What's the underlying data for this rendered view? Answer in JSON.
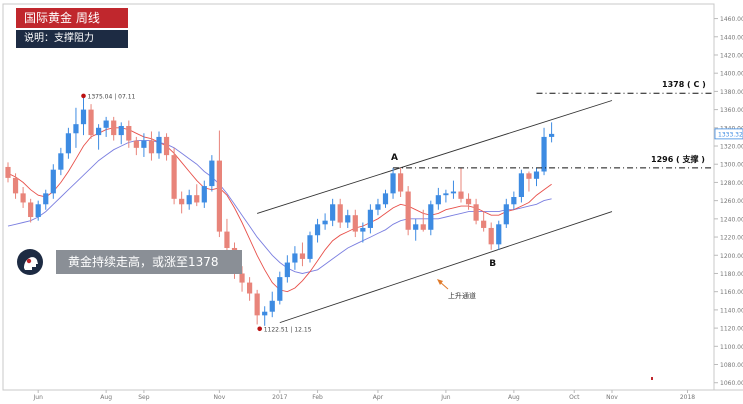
{
  "header": {
    "title": "国际黄金  周线",
    "subtitle": "说明：支撑阻力"
  },
  "callout": {
    "text": "黄金持续走高，或涨至1378",
    "icon": "head-profile-icon"
  },
  "colors": {
    "up": "#3d8be2",
    "down": "#e8847a",
    "ma_fast": "#e8504a",
    "ma_slow": "#7b7fe0",
    "badge_red": "#c0272d",
    "badge_navy": "#1d2b43"
  },
  "chart_data": {
    "type": "candlestick",
    "title": "",
    "xlabel": "",
    "ylabel": "",
    "ylim": [
      1052,
      1476
    ],
    "y_ticks": [
      1060,
      1080,
      1100,
      1120,
      1140,
      1160,
      1180,
      1200,
      1220,
      1240,
      1260,
      1280,
      1300,
      1320,
      1340,
      1360,
      1380,
      1400,
      1420,
      1440,
      1460
    ],
    "last_price": "1333.32",
    "x_ticks": [
      {
        "label": "Jun",
        "i": 4
      },
      {
        "label": "Aug",
        "i": 13
      },
      {
        "label": "Sep",
        "i": 18
      },
      {
        "label": "Nov",
        "i": 28
      },
      {
        "label": "2017",
        "i": 36
      },
      {
        "label": "Feb",
        "i": 41
      },
      {
        "label": "Apr",
        "i": 49
      },
      {
        "label": "Jun",
        "i": 58
      },
      {
        "label": "Aug",
        "i": 67
      },
      {
        "label": "Oct",
        "i": 75
      },
      {
        "label": "Nov",
        "i": 80
      },
      {
        "label": "2018",
        "i": 90
      }
    ],
    "candles": [
      {
        "o": 1297,
        "h": 1302,
        "l": 1280,
        "c": 1285
      },
      {
        "o": 1285,
        "h": 1290,
        "l": 1262,
        "c": 1268
      },
      {
        "o": 1268,
        "h": 1275,
        "l": 1252,
        "c": 1258
      },
      {
        "o": 1258,
        "h": 1262,
        "l": 1236,
        "c": 1242
      },
      {
        "o": 1242,
        "h": 1260,
        "l": 1238,
        "c": 1256
      },
      {
        "o": 1256,
        "h": 1272,
        "l": 1250,
        "c": 1268
      },
      {
        "o": 1268,
        "h": 1300,
        "l": 1262,
        "c": 1294
      },
      {
        "o": 1294,
        "h": 1318,
        "l": 1288,
        "c": 1312
      },
      {
        "o": 1312,
        "h": 1340,
        "l": 1306,
        "c": 1334
      },
      {
        "o": 1334,
        "h": 1362,
        "l": 1318,
        "c": 1344
      },
      {
        "o": 1344,
        "h": 1375.04,
        "l": 1332,
        "c": 1360
      },
      {
        "o": 1360,
        "h": 1366,
        "l": 1328,
        "c": 1332
      },
      {
        "o": 1332,
        "h": 1344,
        "l": 1316,
        "c": 1340
      },
      {
        "o": 1340,
        "h": 1352,
        "l": 1330,
        "c": 1348
      },
      {
        "o": 1348,
        "h": 1352,
        "l": 1326,
        "c": 1332
      },
      {
        "o": 1332,
        "h": 1346,
        "l": 1322,
        "c": 1342
      },
      {
        "o": 1342,
        "h": 1348,
        "l": 1318,
        "c": 1326
      },
      {
        "o": 1326,
        "h": 1330,
        "l": 1310,
        "c": 1318
      },
      {
        "o": 1318,
        "h": 1334,
        "l": 1308,
        "c": 1326
      },
      {
        "o": 1326,
        "h": 1336,
        "l": 1304,
        "c": 1312
      },
      {
        "o": 1312,
        "h": 1336,
        "l": 1306,
        "c": 1330
      },
      {
        "o": 1330,
        "h": 1334,
        "l": 1304,
        "c": 1310
      },
      {
        "o": 1310,
        "h": 1318,
        "l": 1256,
        "c": 1262
      },
      {
        "o": 1262,
        "h": 1270,
        "l": 1246,
        "c": 1256
      },
      {
        "o": 1256,
        "h": 1272,
        "l": 1250,
        "c": 1266
      },
      {
        "o": 1266,
        "h": 1278,
        "l": 1254,
        "c": 1258
      },
      {
        "o": 1258,
        "h": 1282,
        "l": 1252,
        "c": 1276
      },
      {
        "o": 1276,
        "h": 1310,
        "l": 1270,
        "c": 1304
      },
      {
        "o": 1304,
        "h": 1337,
        "l": 1220,
        "c": 1226
      },
      {
        "o": 1226,
        "h": 1240,
        "l": 1200,
        "c": 1208
      },
      {
        "o": 1208,
        "h": 1214,
        "l": 1174,
        "c": 1180
      },
      {
        "o": 1180,
        "h": 1188,
        "l": 1160,
        "c": 1170
      },
      {
        "o": 1170,
        "h": 1176,
        "l": 1150,
        "c": 1158
      },
      {
        "o": 1158,
        "h": 1162,
        "l": 1124,
        "c": 1134
      },
      {
        "o": 1134,
        "h": 1144,
        "l": 1122.51,
        "c": 1138
      },
      {
        "o": 1138,
        "h": 1160,
        "l": 1132,
        "c": 1150
      },
      {
        "o": 1150,
        "h": 1182,
        "l": 1146,
        "c": 1176
      },
      {
        "o": 1176,
        "h": 1200,
        "l": 1170,
        "c": 1192
      },
      {
        "o": 1192,
        "h": 1210,
        "l": 1184,
        "c": 1202
      },
      {
        "o": 1202,
        "h": 1214,
        "l": 1188,
        "c": 1196
      },
      {
        "o": 1196,
        "h": 1226,
        "l": 1192,
        "c": 1222
      },
      {
        "o": 1222,
        "h": 1240,
        "l": 1214,
        "c": 1234
      },
      {
        "o": 1234,
        "h": 1246,
        "l": 1228,
        "c": 1238
      },
      {
        "o": 1238,
        "h": 1262,
        "l": 1232,
        "c": 1256
      },
      {
        "o": 1256,
        "h": 1262,
        "l": 1230,
        "c": 1236
      },
      {
        "o": 1236,
        "h": 1250,
        "l": 1230,
        "c": 1244
      },
      {
        "o": 1244,
        "h": 1250,
        "l": 1220,
        "c": 1226
      },
      {
        "o": 1226,
        "h": 1236,
        "l": 1214,
        "c": 1230
      },
      {
        "o": 1230,
        "h": 1256,
        "l": 1224,
        "c": 1250
      },
      {
        "o": 1250,
        "h": 1262,
        "l": 1244,
        "c": 1256
      },
      {
        "o": 1256,
        "h": 1272,
        "l": 1252,
        "c": 1268
      },
      {
        "o": 1268,
        "h": 1296,
        "l": 1262,
        "c": 1290
      },
      {
        "o": 1290,
        "h": 1296,
        "l": 1264,
        "c": 1270
      },
      {
        "o": 1270,
        "h": 1276,
        "l": 1222,
        "c": 1228
      },
      {
        "o": 1228,
        "h": 1240,
        "l": 1216,
        "c": 1234
      },
      {
        "o": 1234,
        "h": 1250,
        "l": 1226,
        "c": 1228
      },
      {
        "o": 1228,
        "h": 1260,
        "l": 1222,
        "c": 1256
      },
      {
        "o": 1256,
        "h": 1274,
        "l": 1250,
        "c": 1266
      },
      {
        "o": 1266,
        "h": 1272,
        "l": 1258,
        "c": 1268
      },
      {
        "o": 1268,
        "h": 1282,
        "l": 1262,
        "c": 1270
      },
      {
        "o": 1270,
        "h": 1296,
        "l": 1258,
        "c": 1262
      },
      {
        "o": 1262,
        "h": 1268,
        "l": 1250,
        "c": 1256
      },
      {
        "o": 1256,
        "h": 1262,
        "l": 1234,
        "c": 1238
      },
      {
        "o": 1238,
        "h": 1248,
        "l": 1226,
        "c": 1230
      },
      {
        "o": 1230,
        "h": 1236,
        "l": 1206,
        "c": 1212
      },
      {
        "o": 1212,
        "h": 1238,
        "l": 1206,
        "c": 1234
      },
      {
        "o": 1234,
        "h": 1262,
        "l": 1230,
        "c": 1256
      },
      {
        "o": 1256,
        "h": 1270,
        "l": 1250,
        "c": 1264
      },
      {
        "o": 1264,
        "h": 1294,
        "l": 1258,
        "c": 1290
      },
      {
        "o": 1290,
        "h": 1292,
        "l": 1270,
        "c": 1284
      },
      {
        "o": 1284,
        "h": 1296,
        "l": 1276,
        "c": 1292
      },
      {
        "o": 1292,
        "h": 1340,
        "l": 1288,
        "c": 1330
      },
      {
        "o": 1330,
        "h": 1346,
        "l": 1324,
        "c": 1333.32
      }
    ],
    "ma_fast": [
      1290,
      1286,
      1280,
      1272,
      1266,
      1264,
      1270,
      1280,
      1292,
      1306,
      1320,
      1330,
      1334,
      1338,
      1340,
      1340,
      1338,
      1334,
      1330,
      1328,
      1324,
      1320,
      1312,
      1302,
      1292,
      1282,
      1274,
      1272,
      1274,
      1266,
      1252,
      1236,
      1218,
      1200,
      1184,
      1170,
      1162,
      1160,
      1164,
      1172,
      1182,
      1194,
      1206,
      1216,
      1222,
      1226,
      1230,
      1232,
      1236,
      1240,
      1246,
      1252,
      1256,
      1254,
      1250,
      1246,
      1244,
      1246,
      1250,
      1252,
      1254,
      1254,
      1252,
      1248,
      1244,
      1244,
      1248,
      1250,
      1254,
      1258,
      1266,
      1272,
      1278
    ],
    "ma_slow": [
      1232,
      1234,
      1236,
      1238,
      1242,
      1248,
      1256,
      1264,
      1272,
      1280,
      1288,
      1296,
      1304,
      1310,
      1316,
      1320,
      1324,
      1326,
      1326,
      1326,
      1324,
      1322,
      1318,
      1312,
      1306,
      1300,
      1292,
      1286,
      1278,
      1268,
      1256,
      1244,
      1232,
      1220,
      1210,
      1200,
      1192,
      1186,
      1182,
      1180,
      1182,
      1184,
      1190,
      1196,
      1202,
      1208,
      1212,
      1216,
      1220,
      1224,
      1228,
      1234,
      1238,
      1240,
      1240,
      1240,
      1240,
      1240,
      1242,
      1244,
      1246,
      1248,
      1248,
      1248,
      1248,
      1248,
      1250,
      1250,
      1252,
      1254,
      1256,
      1260,
      1262
    ],
    "annotations": {
      "high": {
        "label": "1375.04  |  07.11",
        "i": 10,
        "price": 1375.04
      },
      "low": {
        "label": "1122.51  |  12.15",
        "i": 34,
        "price": 1122.51
      },
      "point_a": {
        "label": "A",
        "i": 51,
        "price": 1296
      },
      "point_b": {
        "label": "B",
        "i": 64,
        "price": 1206
      },
      "resistance": {
        "label": "1378 ( C )",
        "price": 1378
      },
      "support": {
        "label": "1296 ( 支撑 )",
        "price": 1296
      },
      "channel_label": "上升通道"
    },
    "channel": {
      "upper": [
        {
          "i": 33,
          "price": 1246
        },
        {
          "i": 80,
          "price": 1370
        }
      ],
      "lower": [
        {
          "i": 36,
          "price": 1126
        },
        {
          "i": 80,
          "price": 1248
        }
      ]
    }
  }
}
